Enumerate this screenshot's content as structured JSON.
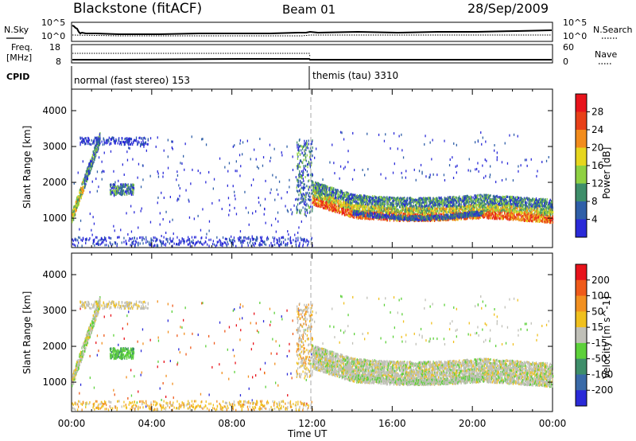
{
  "header": {
    "station": "Blackstone (fitACF)",
    "beam": "Beam 01",
    "date": "28/Sep/2009"
  },
  "noise_panel": {
    "left_label": "N.Sky",
    "left_ticks": [
      "10^5",
      "10^0"
    ],
    "right_label": "N.Search",
    "right_ticks": [
      "10^5",
      "10^0"
    ]
  },
  "freq_panel": {
    "left_label_1": "Freq.",
    "left_label_2": "[MHz]",
    "left_ticks": [
      "18",
      "8"
    ],
    "right_label": "Nave",
    "right_ticks": [
      "60",
      "0"
    ]
  },
  "cpid_panel": {
    "label": "CPID",
    "modes": [
      {
        "name": "normal (fast stereo) 153",
        "start_hour": 0
      },
      {
        "name": "themis (tau) 3310",
        "start_hour": 12
      }
    ]
  },
  "chart_data": [
    {
      "type": "heatmap",
      "name": "power",
      "x_unit": "hours UT",
      "xlim": [
        0,
        24
      ],
      "ylabel": "Slant Range [km]",
      "ylim": [
        180,
        4600
      ],
      "yticks": [
        "1000",
        "2000",
        "3000",
        "4000"
      ],
      "colorbar_label": "Power [dB]",
      "colorbar_ticks": [
        "28",
        "24",
        "20",
        "16",
        "12",
        "8",
        "4"
      ],
      "colorbar_range": [
        0,
        30
      ],
      "colors": [
        "#2a2ad8",
        "#2f5fa8",
        "#3e8e6a",
        "#8fd142",
        "#e6d61e",
        "#f28c1c",
        "#e84018",
        "#e8131b"
      ]
    },
    {
      "type": "heatmap",
      "name": "velocity",
      "x_unit": "hours UT",
      "xlim": [
        0,
        24
      ],
      "xticks": [
        "00:00",
        "04:00",
        "08:00",
        "12:00",
        "16:00",
        "20:00",
        "00:00"
      ],
      "xlabel": "Time UT",
      "ylabel": "Slant Range [km]",
      "ylim": [
        180,
        4600
      ],
      "yticks": [
        "1000",
        "2000",
        "3000",
        "4000"
      ],
      "colorbar_label": "Velocity [m s^-1]",
      "colorbar_ticks": [
        "200",
        "100",
        "50",
        "15",
        "-15",
        "-50",
        "-100",
        "-200"
      ],
      "colorbar_range": [
        -250,
        250
      ],
      "colors": [
        "#2a2ad8",
        "#3a6aa8",
        "#3e8e6a",
        "#5dd13a",
        "#c0c0b8",
        "#f0c01e",
        "#f29020",
        "#ef5a1a",
        "#e8131b"
      ]
    }
  ]
}
